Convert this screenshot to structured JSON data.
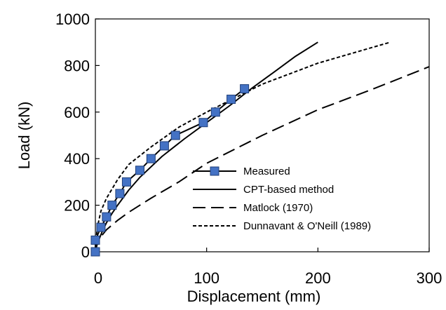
{
  "chart_data": {
    "type": "line",
    "xlabel": "Displacement (mm)",
    "ylabel": "Load (kN)",
    "xlim": [
      0,
      300
    ],
    "ylim": [
      0,
      1000
    ],
    "xticks": [
      "0",
      "100",
      "200",
      "300"
    ],
    "yticks": [
      "0",
      "200",
      "400",
      "600",
      "800",
      "1000"
    ],
    "grid": false,
    "legend_position": "bottom-right",
    "series": [
      {
        "name": "Measured",
        "style": "solid-with-square-markers",
        "color": "#000000",
        "marker_color": "#4472C4",
        "x": [
          0,
          0,
          5,
          10,
          15,
          22,
          28,
          40,
          50,
          62,
          72,
          97,
          108,
          122,
          134
        ],
        "y": [
          0,
          50,
          105,
          150,
          200,
          250,
          300,
          350,
          400,
          455,
          500,
          555,
          600,
          655,
          700
        ]
      },
      {
        "name": "CPT-based method",
        "style": "solid",
        "color": "#000000",
        "x": [
          0,
          1,
          3,
          6,
          10,
          15,
          20,
          30,
          40,
          60,
          80,
          100,
          120,
          140,
          160,
          180,
          200
        ],
        "y": [
          0,
          25,
          50,
          85,
          125,
          165,
          200,
          265,
          320,
          410,
          485,
          555,
          625,
          700,
          770,
          840,
          900
        ]
      },
      {
        "name": "Matlock (1970)",
        "style": "long-dash",
        "color": "#000000",
        "x": [
          0,
          2,
          5,
          10,
          20,
          30,
          50,
          75,
          100,
          150,
          200,
          250,
          300
        ],
        "y": [
          0,
          40,
          65,
          95,
          135,
          170,
          230,
          300,
          380,
          500,
          610,
          700,
          795
        ]
      },
      {
        "name": "Dunnavant & O'Neill (1989)",
        "style": "short-dash",
        "color": "#000000",
        "x": [
          0,
          1,
          2,
          5,
          10,
          20,
          30,
          50,
          75,
          100,
          150,
          200,
          265
        ],
        "y": [
          0,
          70,
          110,
          175,
          230,
          310,
          375,
          450,
          535,
          600,
          720,
          810,
          900
        ]
      }
    ]
  }
}
